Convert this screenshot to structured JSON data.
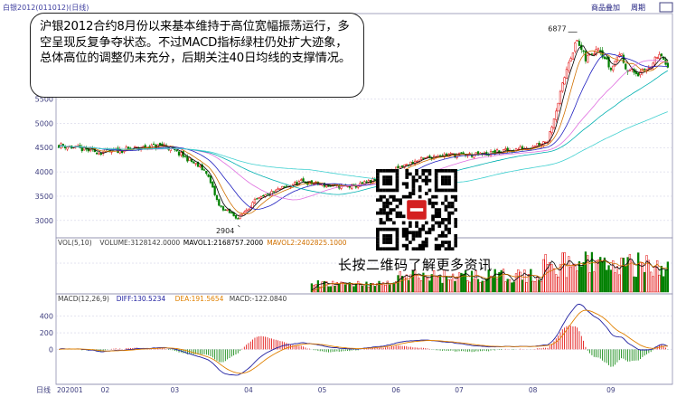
{
  "header": {
    "instrument": "白银2012(011012)(日线)",
    "tools": [
      "商品叠加",
      "周期"
    ],
    "tool_icon": "box-icon"
  },
  "callout": {
    "text": "沪银2012合约8月份以来基本维持于高位宽幅振荡运行，多空呈现反复争夺状态。不过MACD指标绿柱仍处扩大迹象，总体高位的调整仍未充分，后期关注40日均线的支撑情况。"
  },
  "qr": {
    "caption": "长按二维码了解更多资讯",
    "icon": "qr-code-icon"
  },
  "colors": {
    "up": "#e00000",
    "down": "#008000",
    "ma5": "#000000",
    "ma10": "#d07000",
    "ma20": "#2020c0",
    "ma40": "#e070e0",
    "ma60": "#00b0b0",
    "diff": "#2020a0",
    "dea": "#e08000",
    "grid": "#c8c8e0",
    "axis_text": "#404080"
  },
  "chart_data": [
    {
      "type": "candlestick",
      "panel": "price",
      "ylim": [
        2700,
        7200
      ],
      "yticks": [
        3000,
        3500,
        4000,
        4500,
        5000,
        5500
      ],
      "annotations": [
        {
          "label": "6877",
          "value": 6877
        },
        {
          "label": "2904",
          "value": 2904
        }
      ],
      "months": [
        "202001",
        "02",
        "03",
        "04",
        "05",
        "06",
        "07",
        "08",
        "09"
      ],
      "keypoints": [
        [
          0,
          4550
        ],
        [
          20,
          4400
        ],
        [
          50,
          4550
        ],
        [
          60,
          4300
        ],
        [
          70,
          4000
        ],
        [
          76,
          3300
        ],
        [
          85,
          3050
        ],
        [
          93,
          3400
        ],
        [
          105,
          3650
        ],
        [
          115,
          3800
        ],
        [
          130,
          3700
        ],
        [
          140,
          3700
        ],
        [
          152,
          3850
        ],
        [
          160,
          4050
        ],
        [
          168,
          4200
        ],
        [
          180,
          4350
        ],
        [
          200,
          4350
        ],
        [
          215,
          4450
        ],
        [
          222,
          4500
        ],
        [
          232,
          4650
        ],
        [
          238,
          5600
        ],
        [
          242,
          6300
        ],
        [
          246,
          6700
        ],
        [
          250,
          6300
        ],
        [
          256,
          6600
        ],
        [
          262,
          6100
        ],
        [
          266,
          6450
        ],
        [
          270,
          6100
        ],
        [
          276,
          6000
        ],
        [
          282,
          6250
        ],
        [
          286,
          6400
        ],
        [
          289,
          6080
        ]
      ]
    },
    {
      "type": "bar",
      "panel": "volume",
      "legend": [
        "VOL(5,10)",
        "VOLUME:3128142.0000",
        "MAVOL1:2168757.2000",
        "MAVOL2:2402825.1000"
      ],
      "ytick_label": "300万",
      "ytick_value": 3000000,
      "ylim": [
        0,
        4500000
      ]
    },
    {
      "type": "macd",
      "panel": "macd",
      "legend": [
        "MACD(12,26,9)",
        "DIFF:130.5234",
        "DEA:191.5654",
        "MACD:-122.0840"
      ],
      "yticks": [
        400,
        200,
        0
      ],
      "ylim": [
        -400,
        550
      ]
    }
  ]
}
